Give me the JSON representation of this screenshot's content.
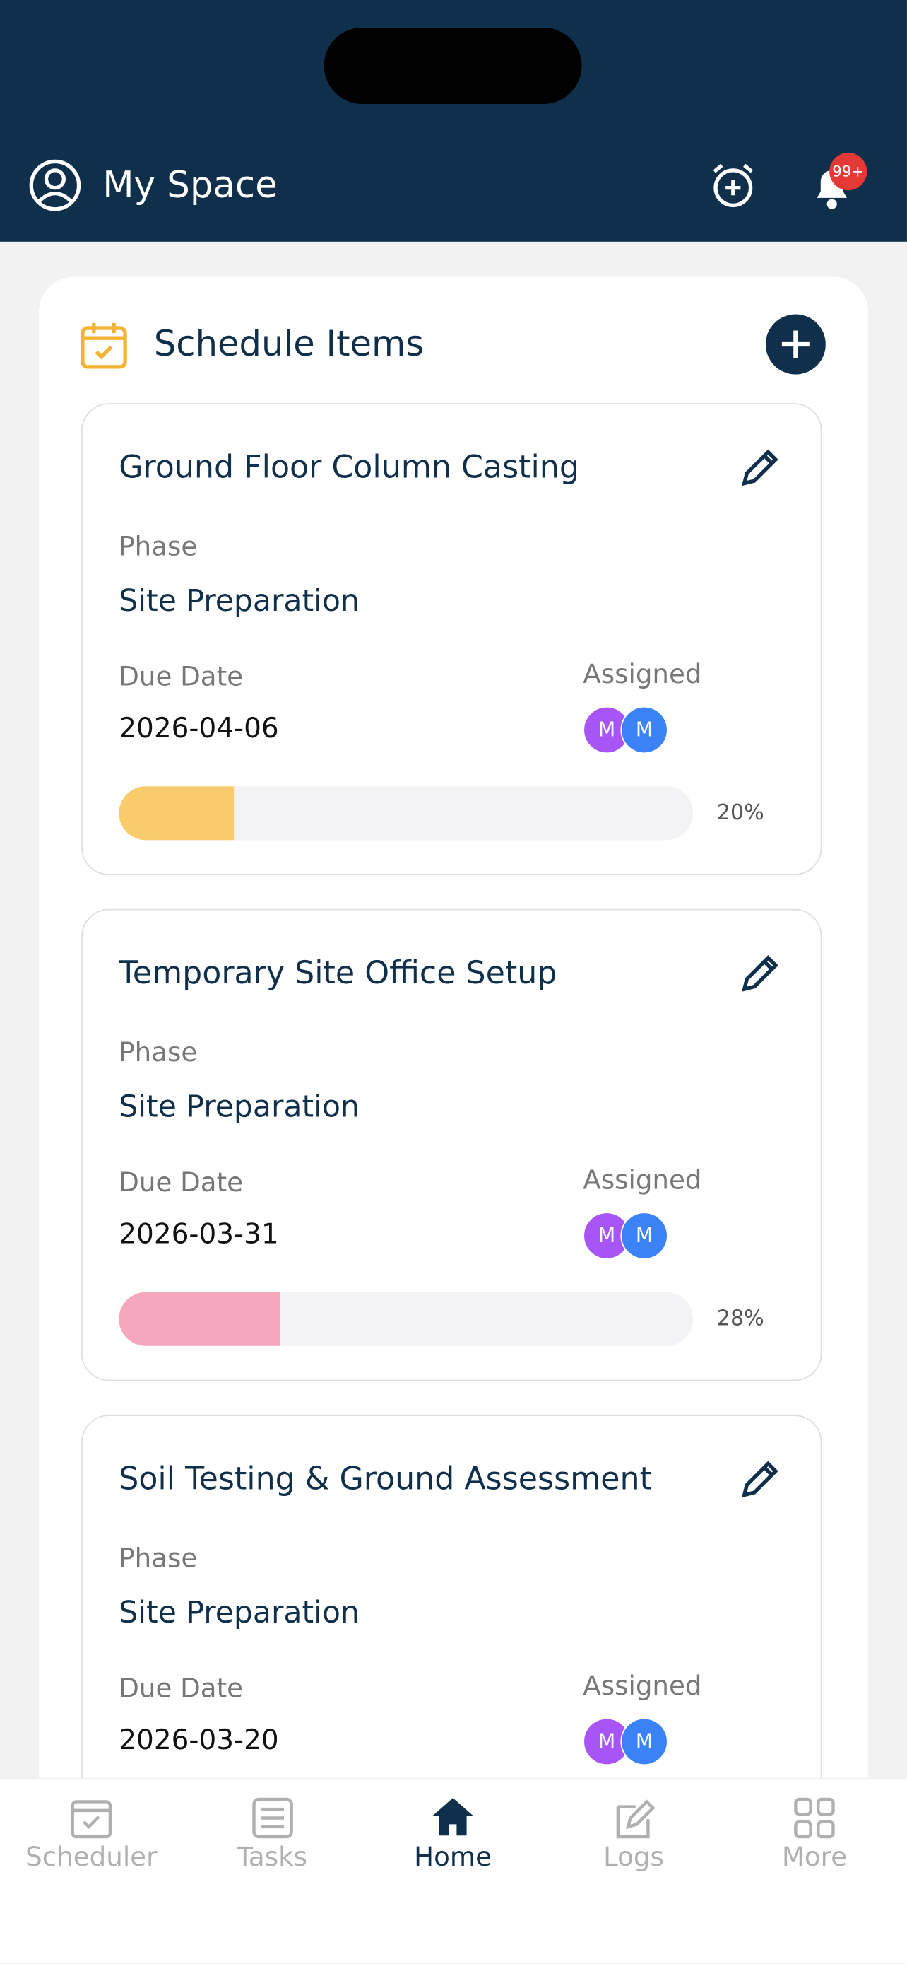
{
  "header": {
    "title": "My Space",
    "notification_badge": "99+"
  },
  "section": {
    "title": "Schedule Items"
  },
  "items": [
    {
      "title": "Ground Floor Column Casting",
      "phase_label": "Phase",
      "phase": "Site Preparation",
      "due_label": "Due Date",
      "due_date": "2026-04-06",
      "assigned_label": "Assigned",
      "assignees": [
        "M",
        "M"
      ],
      "progress": 20,
      "progress_label": "20%",
      "progress_color": "#f9cb6b"
    },
    {
      "title": "Temporary Site Office Setup",
      "phase_label": "Phase",
      "phase": "Site Preparation",
      "due_label": "Due Date",
      "due_date": "2026-03-31",
      "assigned_label": "Assigned",
      "assignees": [
        "M",
        "M"
      ],
      "progress": 28,
      "progress_label": "28%",
      "progress_color": "#f4a7bd"
    },
    {
      "title": "Soil Testing & Ground Assessment",
      "phase_label": "Phase",
      "phase": "Site Preparation",
      "due_label": "Due Date",
      "due_date": "2026-03-20",
      "assigned_label": "Assigned",
      "assignees": [
        "M",
        "M"
      ]
    }
  ],
  "nav": [
    {
      "label": "Scheduler"
    },
    {
      "label": "Tasks"
    },
    {
      "label": "Home",
      "active": true
    },
    {
      "label": "Logs"
    },
    {
      "label": "More"
    }
  ]
}
